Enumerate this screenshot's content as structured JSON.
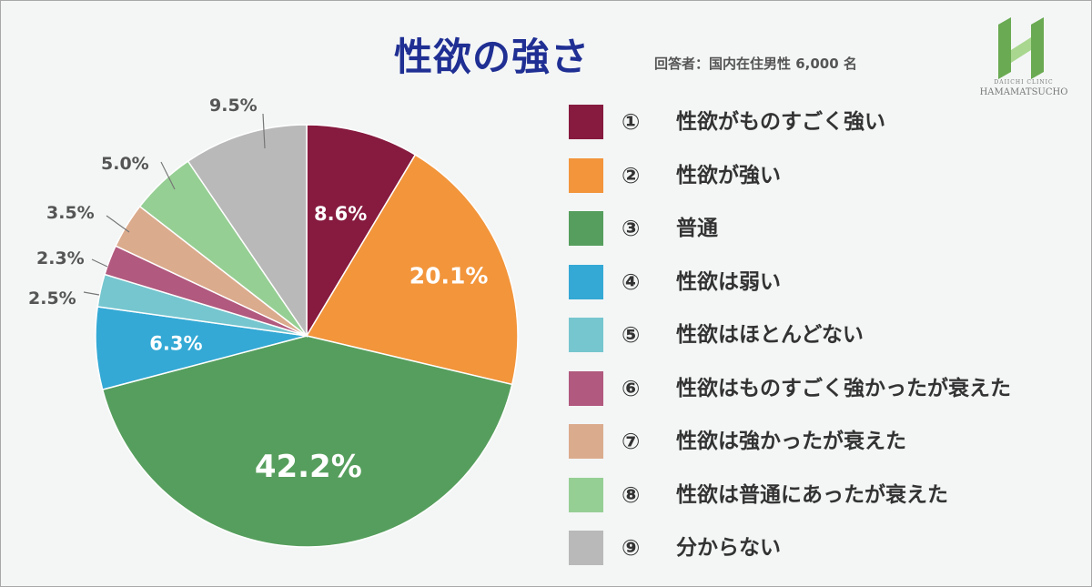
{
  "header": {
    "title": "性欲の強さ",
    "subtitle": "回答者：国内在住男性 6,000 名"
  },
  "logo": {
    "line1": "DAIICHI CLINIC",
    "line2": "HAMAMATSUCHO",
    "icon": "clinic-h-logo"
  },
  "colors": {
    "background": "#f4f6f6",
    "title": "#1f2f93",
    "text": "#333333",
    "outside_label": "#555555",
    "leader_line": "#777777",
    "logo_green_dark": "#6aaa52",
    "logo_green_light": "#a9d78f"
  },
  "chart_data": {
    "type": "pie",
    "title": "性欲の強さ",
    "subtitle": "回答者：国内在住男性 6,000 名",
    "start_angle_deg": 0,
    "direction": "clockwise",
    "legend_position": "right",
    "slices": [
      {
        "number": "①",
        "label": "性欲がものすごく強い",
        "value": 8.6,
        "display": "8.6%",
        "color": "#861a3f",
        "label_placement": "inside"
      },
      {
        "number": "②",
        "label": "性欲が強い",
        "value": 20.1,
        "display": "20.1%",
        "color": "#f2953b",
        "label_placement": "inside"
      },
      {
        "number": "③",
        "label": "普通",
        "value": 42.2,
        "display": "42.2%",
        "color": "#569e5d",
        "label_placement": "inside"
      },
      {
        "number": "④",
        "label": "性欲は弱い",
        "value": 6.3,
        "display": "6.3%",
        "color": "#34a9d5",
        "label_placement": "inside"
      },
      {
        "number": "⑤",
        "label": "性欲はほとんどない",
        "value": 2.5,
        "display": "2.5%",
        "color": "#76c6cf",
        "label_placement": "outside"
      },
      {
        "number": "⑥",
        "label": "性欲はものすごく強かったが衰えた",
        "value": 2.3,
        "display": "2.3%",
        "color": "#b1597e",
        "label_placement": "outside"
      },
      {
        "number": "⑦",
        "label": "性欲は強かったが衰えた",
        "value": 3.5,
        "display": "3.5%",
        "color": "#dbab8d",
        "label_placement": "outside"
      },
      {
        "number": "⑧",
        "label": "性欲は普通にあったが衰えた",
        "value": 5.0,
        "display": "5.0%",
        "color": "#96cf94",
        "label_placement": "outside"
      },
      {
        "number": "⑨",
        "label": "分からない",
        "value": 9.5,
        "display": "9.5%",
        "color": "#b9b9b9",
        "label_placement": "outside"
      }
    ]
  }
}
